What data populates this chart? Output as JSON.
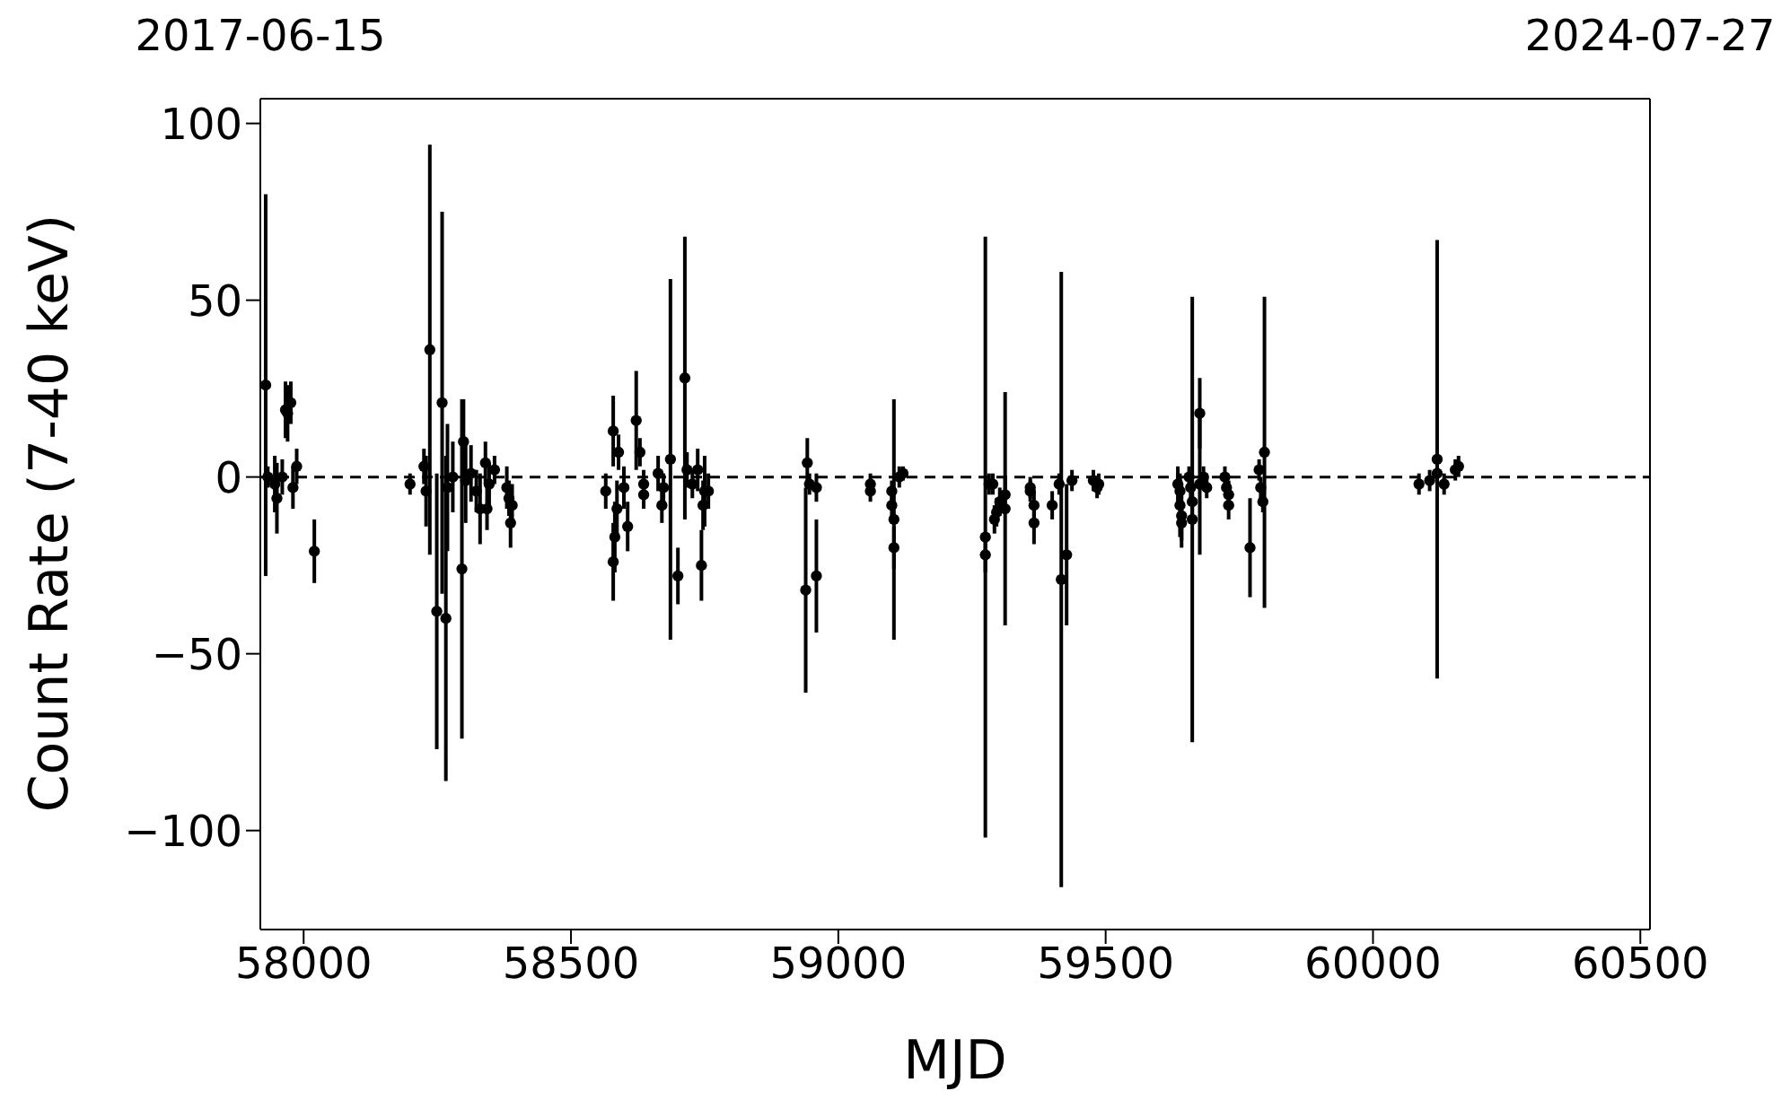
{
  "chart_data": {
    "type": "scatter",
    "xlabel": "MJD",
    "ylabel": "Count Rate (7-40 keV)",
    "marker": "circle",
    "xlim": [
      57919,
      60518
    ],
    "xticks": [
      58000,
      58500,
      59000,
      59500,
      60000,
      60500
    ],
    "x2lim": [
      "2017-06-15",
      "2024-07-27"
    ],
    "x2ticks": [
      "2017-06-15",
      "2024-07-27"
    ],
    "ylim": [
      -128,
      107
    ],
    "yticks": [
      {
        "value": -100,
        "label": "−100"
      },
      {
        "value": -50,
        "label": "−50"
      },
      0,
      50,
      100
    ],
    "ref_lines": [
      {
        "axis": "y",
        "value": 0,
        "label": null,
        "color": "#000000",
        "line_style": "dashed"
      }
    ],
    "series": [
      {
        "type": "scatter",
        "color": "#000000",
        "x": [
          57929,
          57933,
          57946,
          57950,
          57960,
          57966,
          57970,
          57976,
          57980,
          57987,
          58020,
          58199,
          58225,
          58229,
          58236,
          58249,
          58259,
          58266,
          58269,
          58279,
          58296,
          58299,
          58303,
          58313,
          58323,
          58330,
          58340,
          58343,
          58347,
          58357,
          58380,
          58384,
          58387,
          58390,
          58565,
          58579,
          58579,
          58582,
          58586,
          58589,
          58599,
          58606,
          58622,
          58629,
          58636,
          58636,
          58663,
          58670,
          58673,
          58686,
          58700,
          58713,
          58717,
          58727,
          58737,
          58744,
          58747,
          58750,
          58757,
          58939,
          58942,
          58946,
          58959,
          58959,
          59060,
          59060,
          59100,
          59100,
          59104,
          59104,
          59114,
          59121,
          59275,
          59275,
          59282,
          59289,
          59292,
          59296,
          59302,
          59312,
          59312,
          59359,
          59359,
          59366,
          59366,
          59400,
          59413,
          59417,
          59427,
          59437,
          59477,
          59484,
          59487,
          59635,
          59639,
          59639,
          59642,
          59642,
          59656,
          59659,
          59662,
          59662,
          59676,
          59676,
          59683,
          59689,
          59723,
          59726,
          59730,
          59730,
          59770,
          59787,
          59790,
          59794,
          59797,
          60086,
          60106,
          60120,
          60120,
          60133,
          60154,
          60160
        ],
        "values": [
          26,
          0,
          -2,
          -6,
          0,
          19,
          18,
          21,
          -3,
          3,
          -21,
          -2,
          3,
          -4,
          36,
          -38,
          21,
          -40,
          -3,
          0,
          -26,
          10,
          -1,
          1,
          -4,
          -9,
          4,
          -9,
          -2,
          2,
          -3,
          -6,
          -13,
          -8,
          -4,
          13,
          -24,
          -17,
          -9,
          7,
          -3,
          -14,
          16,
          7,
          -2,
          -5,
          1,
          -8,
          -3,
          5,
          -28,
          28,
          2,
          -2,
          2,
          -25,
          -8,
          -4,
          -4,
          -32,
          4,
          -2,
          -3,
          -28,
          -2,
          -4,
          -4,
          -8,
          -12,
          -20,
          0,
          1,
          -17,
          -22,
          -2,
          -2,
          -12,
          -10,
          -7,
          -9,
          -5,
          -3,
          -4,
          -8,
          -13,
          -8,
          -2,
          -29,
          -22,
          -1,
          -1,
          -3,
          -2,
          -2,
          -4,
          -8,
          -11,
          -13,
          0,
          -3,
          -12,
          -7,
          18,
          -2,
          0,
          -3,
          0,
          -3,
          -5,
          -8,
          -20,
          2,
          -3,
          -7,
          7,
          -2,
          -1,
          5,
          1,
          -2,
          2,
          3
        ],
        "errors": [
          54,
          3,
          8,
          10,
          5,
          8,
          8,
          6,
          6,
          5,
          9,
          3,
          5,
          10,
          58,
          39,
          54,
          46,
          18,
          10,
          48,
          12,
          12,
          8,
          6,
          10,
          6,
          6,
          6,
          4,
          6,
          5,
          7,
          6,
          5,
          10,
          11,
          10,
          8,
          5,
          6,
          7,
          14,
          4,
          4,
          4,
          5,
          5,
          4,
          51,
          8,
          40,
          5,
          4,
          6,
          10,
          7,
          10,
          5,
          29,
          7,
          3,
          4,
          16,
          3,
          3,
          3,
          4,
          34,
          6,
          3,
          2,
          85,
          5,
          3,
          3,
          4,
          4,
          4,
          33,
          5,
          3,
          3,
          4,
          6,
          4,
          3,
          87,
          20,
          3,
          3,
          3,
          3,
          5,
          4,
          9,
          9,
          5,
          3,
          3,
          63,
          6,
          10,
          20,
          3,
          3,
          3,
          3,
          4,
          4,
          14,
          3,
          3,
          3,
          44,
          3,
          3,
          62,
          3,
          3,
          3,
          3
        ]
      }
    ]
  }
}
